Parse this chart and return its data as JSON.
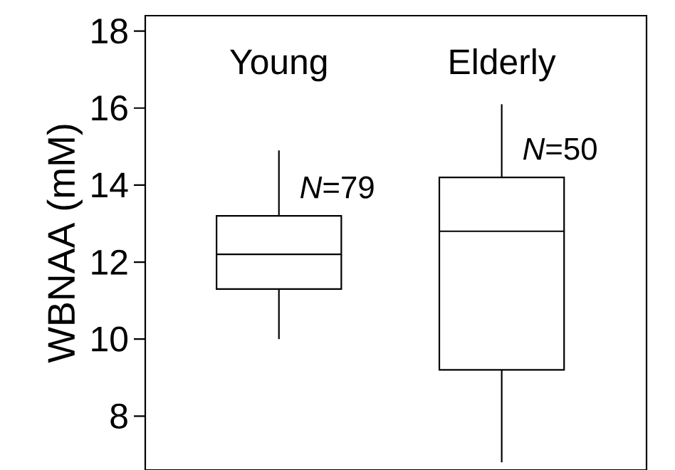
{
  "chart_data": {
    "type": "box",
    "ylabel": "WBNAA (mM)",
    "categories": [
      "Young",
      "Elderly"
    ],
    "boxes": [
      {
        "low": 10.0,
        "q1": 11.3,
        "median": 12.2,
        "q3": 13.2,
        "high": 14.9
      },
      {
        "low": 6.8,
        "q1": 9.2,
        "median": 12.8,
        "q3": 14.2,
        "high": 16.1
      }
    ],
    "ylim": [
      6.6,
      18.4
    ],
    "yticks": [
      8,
      10,
      12,
      14,
      16,
      18
    ],
    "tick_labels": "y",
    "annotations": [
      "*N*=79",
      "*N*=50"
    ]
  }
}
